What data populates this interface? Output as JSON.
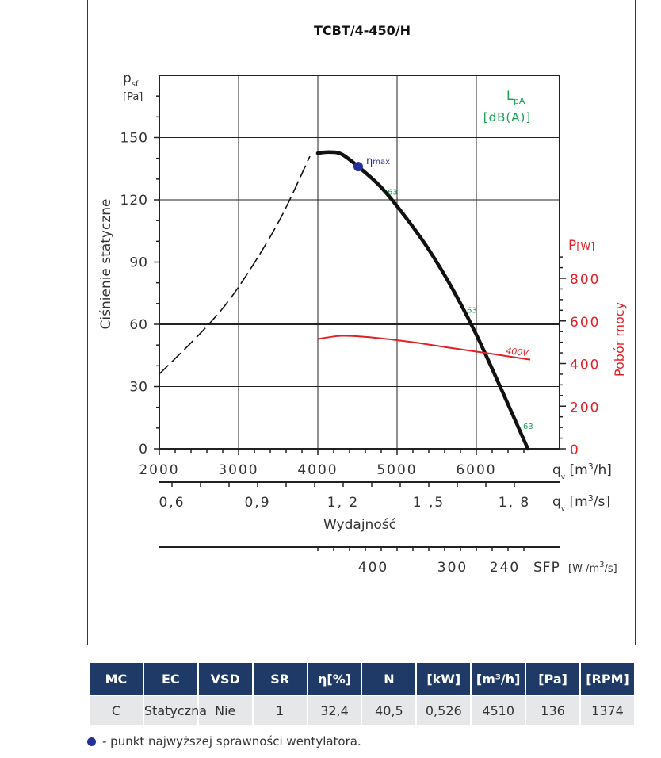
{
  "chart_data": {
    "type": "line",
    "title": "TCBT/4-450/H",
    "y_axis": {
      "symbol": "p",
      "symbol_sub": "sf",
      "unit": "[Pa]",
      "label": "Ciśnienie statyczne",
      "range": [
        0,
        180
      ],
      "ticks": [
        0,
        30,
        60,
        90,
        120,
        150
      ]
    },
    "x_axis_m3h": {
      "symbol": "q",
      "symbol_sub": "v",
      "unit_pre": "[m",
      "unit_sup": "3",
      "unit_post": "/h]",
      "range": [
        2000,
        7000
      ],
      "ticks": [
        2000,
        3000,
        4000,
        5000,
        6000
      ],
      "tick_labels": [
        "2000",
        "3000",
        "4000",
        "5000",
        "6000"
      ]
    },
    "x_axis_m3s": {
      "symbol": "q",
      "symbol_sub": "v",
      "unit_pre": "[m",
      "unit_sup": "3",
      "unit_post": "/s]",
      "ticks": [
        0.6,
        0.9,
        1.2,
        1.5,
        1.8
      ],
      "tick_labels": [
        "0,6",
        "0,9",
        "1, 2",
        "1 ,5",
        "1, 8"
      ]
    },
    "x_label": "Wydajność",
    "sfp_axis": {
      "label": "SFP",
      "unit_pre": "[W /m",
      "unit_sup": "3",
      "unit_post": "/s]",
      "labels": [
        {
          "x": 4700,
          "text": "400"
        },
        {
          "x": 5700,
          "text": "300"
        },
        {
          "x": 6360,
          "text": "240"
        }
      ]
    },
    "power_axis": {
      "symbol": "P",
      "unit": "[W]",
      "label": "Pobór mocy",
      "range": [
        0,
        1000
      ],
      "ticks": [
        0,
        200,
        400,
        600,
        800
      ],
      "tick_labels": [
        "0",
        "200",
        "400",
        "600",
        "800"
      ]
    },
    "lpa": {
      "symbol": "L",
      "symbol_sub": "pA",
      "unit": "[dB(A)]",
      "labels": [
        {
          "x": 4980,
          "y": 124,
          "text": "63"
        },
        {
          "x": 5980,
          "y": 67,
          "text": "63"
        },
        {
          "x": 6690,
          "y": 11,
          "text": "63"
        }
      ]
    },
    "series": [
      {
        "name": "",
        "kind": "pressure-dashed",
        "points": [
          [
            2000,
            36
          ],
          [
            2600,
            59
          ],
          [
            3000,
            78
          ],
          [
            3500,
            109
          ],
          [
            3900,
            141
          ]
        ]
      },
      {
        "name": "",
        "kind": "pressure",
        "points": [
          [
            4000,
            142.5
          ],
          [
            4150,
            143
          ],
          [
            4300,
            142
          ],
          [
            4510,
            136
          ],
          [
            4800,
            126
          ],
          [
            5100,
            112
          ],
          [
            5400,
            96
          ],
          [
            5700,
            77
          ],
          [
            6000,
            55
          ],
          [
            6300,
            30
          ],
          [
            6650,
            0
          ]
        ]
      },
      {
        "name": "400V",
        "kind": "power",
        "points": [
          [
            4000,
            515
          ],
          [
            4300,
            530
          ],
          [
            4700,
            522
          ],
          [
            5200,
            500
          ],
          [
            5700,
            472
          ],
          [
            6200,
            445
          ],
          [
            6680,
            418
          ]
        ]
      }
    ],
    "eta_max": {
      "label": "η",
      "label_sub": "max",
      "x": 4510,
      "y": 136
    }
  },
  "table": {
    "headers": [
      "MC",
      "EC",
      "VSD",
      "SR",
      "η[%]",
      "N",
      "[kW]",
      "[m³/h]",
      "[Pa]",
      "[RPM]"
    ],
    "row": [
      "C",
      "Statyczna",
      "Nie",
      "1",
      "32,4",
      "40,5",
      "0,526",
      "4510",
      "136",
      "1374"
    ]
  },
  "note": "- punkt najwyższej sprawności wentylatora.",
  "colors": {
    "navy": "#1f3a66",
    "red": "#e31e24",
    "green": "#1a9e52",
    "dot": "#25309a"
  }
}
